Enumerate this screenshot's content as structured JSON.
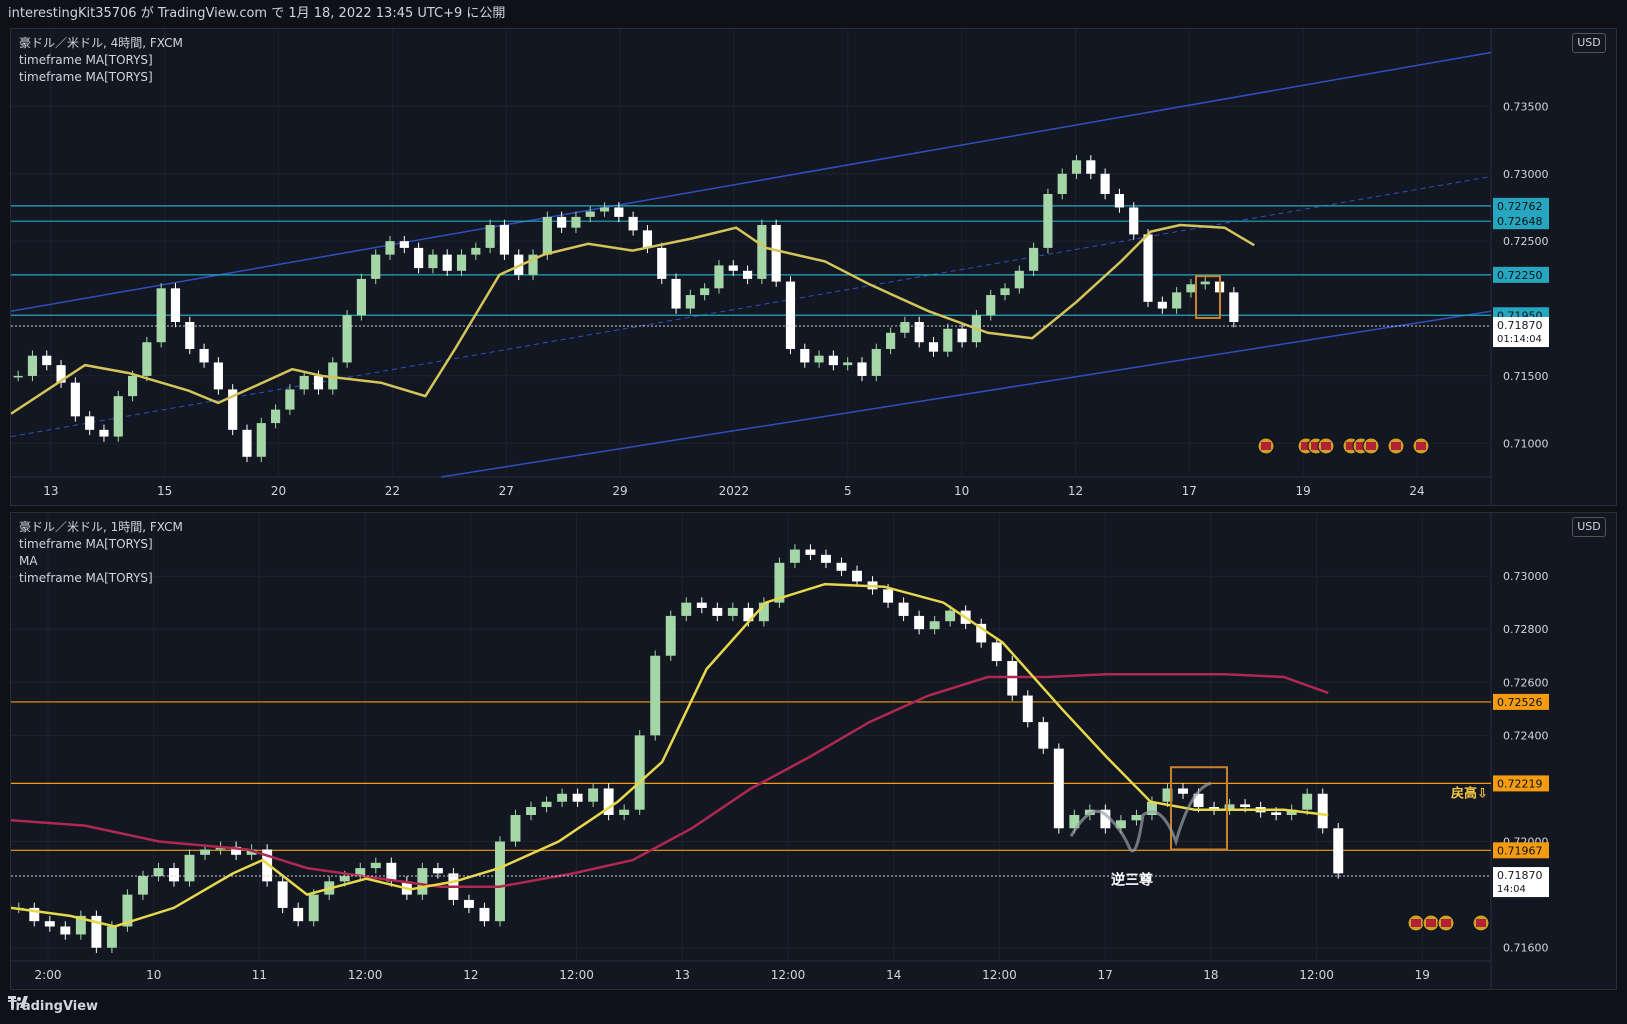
{
  "header": {
    "publish_text": "interestingKit35706 が TradingView.com で 1月 18, 2022 13:45 UTC+9 に公開"
  },
  "footer": {
    "brand": "TradingView"
  },
  "colors": {
    "bg": "#131722",
    "grid": "#1e222d",
    "up": "#a5d6a7",
    "down": "#ffffff",
    "ma_yellow": "#d4c55a",
    "ma_yellow2": "#e6d84a",
    "ma_red": "#b0284f",
    "channel": "#2f4fbf",
    "cyan": "#26a7bf",
    "orange": "#f39c12",
    "price_bg": "#ffffff"
  },
  "chart_data": [
    {
      "type": "candlestick",
      "title": "豪ドル／米ドル, 4時間, FXCM",
      "indicators": [
        "timeframe MA[TORYS]",
        "timeframe MA[TORYS]"
      ],
      "currency": "USD",
      "y_ticks": [
        "0.73500",
        "0.73000",
        "0.72500",
        "0.71500",
        "0.71000"
      ],
      "x_ticks": [
        "13",
        "15",
        "20",
        "22",
        "27",
        "29",
        "2022",
        "5",
        "10",
        "12",
        "17",
        "19",
        "24"
      ],
      "ylim": [
        0.7075,
        0.74
      ],
      "hlines": [
        {
          "value": "0.72762",
          "color": "cyan"
        },
        {
          "value": "0.72648",
          "color": "cyan"
        },
        {
          "value": "0.72250",
          "color": "cyan"
        },
        {
          "value": "0.71950",
          "color": "cyan"
        }
      ],
      "last_price": "0.71870",
      "countdown": "01:14:04",
      "ma_path": [
        [
          0,
          0.7122
        ],
        [
          0.05,
          0.7158
        ],
        [
          0.08,
          0.7152
        ],
        [
          0.12,
          0.7139
        ],
        [
          0.14,
          0.713
        ],
        [
          0.19,
          0.7155
        ],
        [
          0.21,
          0.715
        ],
        [
          0.25,
          0.7145
        ],
        [
          0.28,
          0.7135
        ],
        [
          0.3,
          0.717
        ],
        [
          0.33,
          0.7225
        ],
        [
          0.36,
          0.724
        ],
        [
          0.39,
          0.7248
        ],
        [
          0.42,
          0.7243
        ],
        [
          0.46,
          0.7252
        ],
        [
          0.49,
          0.726
        ],
        [
          0.51,
          0.7245
        ],
        [
          0.55,
          0.7235
        ],
        [
          0.58,
          0.7218
        ],
        [
          0.62,
          0.7198
        ],
        [
          0.66,
          0.7182
        ],
        [
          0.69,
          0.7178
        ],
        [
          0.72,
          0.7205
        ],
        [
          0.75,
          0.7235
        ],
        [
          0.77,
          0.7257
        ],
        [
          0.79,
          0.7262
        ],
        [
          0.82,
          0.726
        ],
        [
          0.84,
          0.7247
        ]
      ],
      "candles_seed": [
        0.715,
        0.7165,
        0.7158,
        0.7145,
        0.712,
        0.711,
        0.7105,
        0.7135,
        0.715,
        0.7175,
        0.7215,
        0.719,
        0.717,
        0.716,
        0.714,
        0.711,
        0.709,
        0.7115,
        0.7125,
        0.714,
        0.715,
        0.714,
        0.716,
        0.7195,
        0.7222,
        0.724,
        0.725,
        0.7245,
        0.723,
        0.724,
        0.7228,
        0.724,
        0.7245,
        0.7262,
        0.724,
        0.7225,
        0.724,
        0.7268,
        0.726,
        0.7268,
        0.7272,
        0.7275,
        0.7268,
        0.7258,
        0.7245,
        0.7222,
        0.72,
        0.721,
        0.7215,
        0.7232,
        0.7228,
        0.7222,
        0.7262,
        0.722,
        0.717,
        0.716,
        0.7165,
        0.7158,
        0.716,
        0.715,
        0.717,
        0.7182,
        0.719,
        0.7175,
        0.7168,
        0.7185,
        0.7175,
        0.7195,
        0.721,
        0.7215,
        0.7228,
        0.7245,
        0.7285,
        0.73,
        0.731,
        0.73,
        0.7285,
        0.7275,
        0.7255,
        0.7205,
        0.72,
        0.7212,
        0.7218,
        0.722,
        0.7212,
        0.719
      ]
    },
    {
      "type": "candlestick",
      "title": "豪ドル／米ドル, 1時間, FXCM",
      "indicators": [
        "timeframe MA[TORYS]",
        "MA",
        "timeframe MA[TORYS]"
      ],
      "currency": "USD",
      "y_ticks": [
        "0.73000",
        "0.72800",
        "0.72600",
        "0.72400",
        "0.72000",
        "0.71600"
      ],
      "x_ticks": [
        "2:00",
        "10",
        "11",
        "12:00",
        "12",
        "12:00",
        "13",
        "12:00",
        "14",
        "12:00",
        "17",
        "18",
        "12:00",
        "19"
      ],
      "ylim": [
        0.7155,
        0.732
      ],
      "hlines": [
        {
          "value": "0.72526",
          "color": "orange"
        },
        {
          "value": "0.72219",
          "color": "orange"
        },
        {
          "value": "0.71967",
          "color": "orange"
        }
      ],
      "last_price": "0.71870",
      "countdown": "14:04",
      "annotations": [
        "戻高⇩",
        "逆三尊"
      ],
      "ma_yellow_path": [
        [
          0,
          0.7175
        ],
        [
          0.04,
          0.7172
        ],
        [
          0.07,
          0.7168
        ],
        [
          0.11,
          0.7175
        ],
        [
          0.15,
          0.7188
        ],
        [
          0.17,
          0.7193
        ],
        [
          0.2,
          0.718
        ],
        [
          0.24,
          0.7186
        ],
        [
          0.27,
          0.7182
        ],
        [
          0.3,
          0.7185
        ],
        [
          0.33,
          0.719
        ],
        [
          0.37,
          0.72
        ],
        [
          0.41,
          0.7215
        ],
        [
          0.44,
          0.723
        ],
        [
          0.47,
          0.7265
        ],
        [
          0.51,
          0.729
        ],
        [
          0.55,
          0.7297
        ],
        [
          0.59,
          0.7296
        ],
        [
          0.63,
          0.729
        ],
        [
          0.67,
          0.7275
        ],
        [
          0.71,
          0.725
        ],
        [
          0.74,
          0.7232
        ],
        [
          0.77,
          0.7215
        ],
        [
          0.8,
          0.7212
        ],
        [
          0.83,
          0.7212
        ],
        [
          0.86,
          0.7212
        ],
        [
          0.89,
          0.721
        ]
      ],
      "ma_red_path": [
        [
          0,
          0.7208
        ],
        [
          0.05,
          0.7206
        ],
        [
          0.1,
          0.72
        ],
        [
          0.16,
          0.7197
        ],
        [
          0.2,
          0.719
        ],
        [
          0.25,
          0.7186
        ],
        [
          0.29,
          0.7183
        ],
        [
          0.33,
          0.7183
        ],
        [
          0.38,
          0.7188
        ],
        [
          0.42,
          0.7193
        ],
        [
          0.46,
          0.7205
        ],
        [
          0.5,
          0.722
        ],
        [
          0.54,
          0.7232
        ],
        [
          0.58,
          0.7245
        ],
        [
          0.62,
          0.7255
        ],
        [
          0.66,
          0.7262
        ],
        [
          0.7,
          0.7262
        ],
        [
          0.74,
          0.7263
        ],
        [
          0.78,
          0.7263
        ],
        [
          0.82,
          0.7263
        ],
        [
          0.86,
          0.7262
        ],
        [
          0.89,
          0.7256
        ]
      ],
      "candles_seed": [
        0.7175,
        0.717,
        0.7168,
        0.7165,
        0.7172,
        0.716,
        0.7168,
        0.718,
        0.7187,
        0.719,
        0.7185,
        0.7195,
        0.7197,
        0.7198,
        0.7195,
        0.7197,
        0.7185,
        0.7175,
        0.717,
        0.718,
        0.7185,
        0.7187,
        0.719,
        0.7192,
        0.7185,
        0.718,
        0.719,
        0.7188,
        0.7178,
        0.7175,
        0.717,
        0.72,
        0.721,
        0.7213,
        0.7215,
        0.7218,
        0.7215,
        0.722,
        0.721,
        0.7212,
        0.724,
        0.727,
        0.7285,
        0.729,
        0.7288,
        0.7285,
        0.7288,
        0.7283,
        0.729,
        0.7305,
        0.731,
        0.7308,
        0.7305,
        0.7302,
        0.7298,
        0.7295,
        0.729,
        0.7285,
        0.728,
        0.7283,
        0.7287,
        0.7282,
        0.7275,
        0.7268,
        0.7255,
        0.7245,
        0.7235,
        0.7205,
        0.721,
        0.7212,
        0.7205,
        0.7208,
        0.721,
        0.7215,
        0.722,
        0.7218,
        0.7213,
        0.7212,
        0.7214,
        0.7213,
        0.7211,
        0.721,
        0.7212,
        0.7218,
        0.7205,
        0.7188
      ]
    }
  ]
}
